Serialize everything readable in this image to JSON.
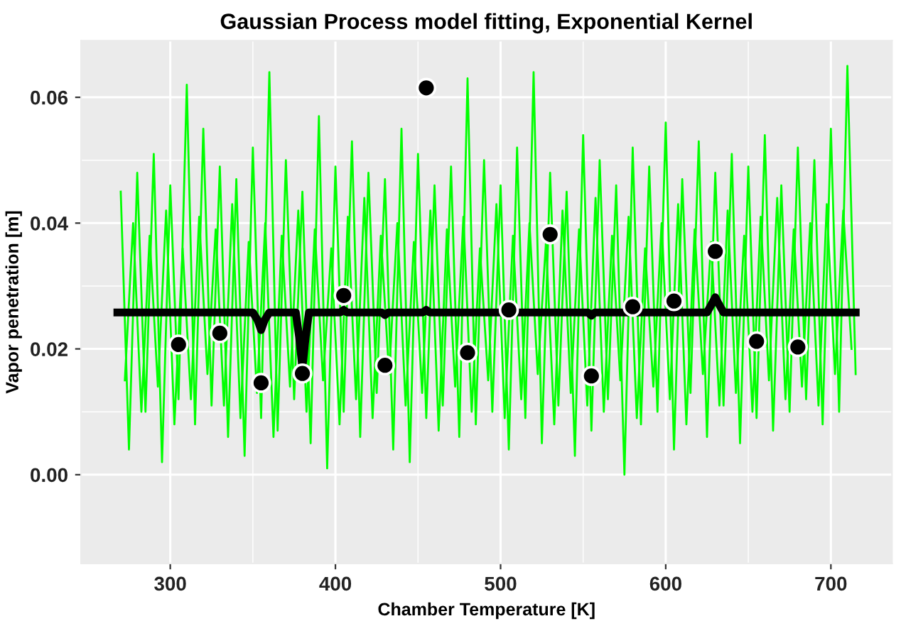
{
  "chart_data": {
    "type": "line",
    "title": "Gaussian Process model fitting, Exponential Kernel",
    "xlabel": "Chamber Temperature [K]",
    "ylabel": "Vapor penetration [m]",
    "xlim": [
      246,
      737
    ],
    "xticks": [
      300,
      400,
      500,
      600,
      700
    ],
    "ylim": [
      -0.0141,
      0.069
    ],
    "yticks": [
      {
        "value": 0,
        "label": "0.00"
      },
      {
        "value": 0.02,
        "label": "0.02"
      },
      {
        "value": 0.04,
        "label": "0.04"
      },
      {
        "value": 0.06,
        "label": "0.06"
      }
    ],
    "grid": true,
    "legend": false,
    "series": [
      {
        "color": "#00ff00",
        "x": [
          270,
          275,
          280,
          285,
          290,
          295,
          300,
          305,
          310,
          315,
          320,
          325,
          330,
          335,
          340,
          345,
          350,
          355,
          360,
          365,
          370,
          375,
          380,
          385,
          390,
          395,
          400,
          405,
          410,
          415,
          420,
          425,
          430,
          435,
          440,
          445,
          450,
          455,
          460,
          465,
          470,
          475,
          480,
          485,
          490,
          495,
          500,
          505,
          510,
          515,
          520,
          525,
          530,
          535,
          540,
          545,
          550,
          555,
          560,
          565,
          570,
          575,
          580,
          585,
          590,
          595,
          600,
          605,
          610,
          615,
          620,
          625,
          630,
          635,
          640,
          645,
          650,
          655,
          660,
          665,
          670,
          675,
          680,
          685,
          690,
          695,
          700,
          705,
          710,
          715
        ],
        "values": [
          0.045,
          0.004,
          0.048,
          0.01,
          0.051,
          0.002,
          0.046,
          0.012,
          0.062,
          0.008,
          0.055,
          0.011,
          0.049,
          0.006,
          0.047,
          0.003,
          0.052,
          0.009,
          0.064,
          0.007,
          0.05,
          0.012,
          0.045,
          0.005,
          0.057,
          0.001,
          0.049,
          0.01,
          0.053,
          0.006,
          0.048,
          0.013,
          0.047,
          0.004,
          0.055,
          0.002,
          0.051,
          0.009,
          0.046,
          0.011,
          0.049,
          0.006,
          0.063,
          0.008,
          0.05,
          0.01,
          0.046,
          0.004,
          0.052,
          0.009,
          0.064,
          0.005,
          0.048,
          0.011,
          0.045,
          0.003,
          0.054,
          0.007,
          0.05,
          0.012,
          0.046,
          0.0,
          0.052,
          0.008,
          0.049,
          0.01,
          0.056,
          0.004,
          0.047,
          0.013,
          0.053,
          0.006,
          0.048,
          0.011,
          0.051,
          0.005,
          0.049,
          0.009,
          0.054,
          0.007,
          0.046,
          0.01,
          0.052,
          0.012,
          0.05,
          0.008,
          0.055,
          0.01,
          0.065,
          0.016
        ]
      },
      {
        "color": "#00ff00",
        "x": [
          272.5,
          277.5,
          282.5,
          287.5,
          292.5,
          297.5,
          302.5,
          307.5,
          312.5,
          317.5,
          322.5,
          327.5,
          332.5,
          337.5,
          342.5,
          347.5,
          352.5,
          357.5,
          362.5,
          367.5,
          372.5,
          377.5,
          382.5,
          387.5,
          392.5,
          397.5,
          402.5,
          407.5,
          412.5,
          417.5,
          422.5,
          427.5,
          432.5,
          437.5,
          442.5,
          447.5,
          452.5,
          457.5,
          462.5,
          467.5,
          472.5,
          477.5,
          482.5,
          487.5,
          492.5,
          497.5,
          502.5,
          507.5,
          512.5,
          517.5,
          522.5,
          527.5,
          532.5,
          537.5,
          542.5,
          547.5,
          552.5,
          557.5,
          562.5,
          567.5,
          572.5,
          577.5,
          582.5,
          587.5,
          592.5,
          597.5,
          602.5,
          607.5,
          612.5,
          617.5,
          622.5,
          627.5,
          632.5,
          637.5,
          642.5,
          647.5,
          652.5,
          657.5,
          662.5,
          667.5,
          672.5,
          677.5,
          682.5,
          687.5,
          692.5,
          697.5,
          702.5,
          707.5,
          712.5
        ],
        "values": [
          0.015,
          0.04,
          0.01,
          0.038,
          0.014,
          0.042,
          0.008,
          0.036,
          0.012,
          0.041,
          0.016,
          0.039,
          0.011,
          0.043,
          0.009,
          0.037,
          0.013,
          0.04,
          0.006,
          0.038,
          0.014,
          0.042,
          0.01,
          0.039,
          0.015,
          0.036,
          0.008,
          0.041,
          0.012,
          0.044,
          0.009,
          0.038,
          0.016,
          0.04,
          0.011,
          0.037,
          0.013,
          0.042,
          0.007,
          0.039,
          0.014,
          0.041,
          0.01,
          0.036,
          0.015,
          0.043,
          0.009,
          0.038,
          0.012,
          0.04,
          0.016,
          0.037,
          0.008,
          0.042,
          0.013,
          0.039,
          0.011,
          0.044,
          0.01,
          0.038,
          0.015,
          0.041,
          0.009,
          0.036,
          0.014,
          0.04,
          0.012,
          0.043,
          0.008,
          0.039,
          0.016,
          0.037,
          0.011,
          0.042,
          0.013,
          0.038,
          0.01,
          0.041,
          0.015,
          0.044,
          0.012,
          0.039,
          0.014,
          0.04,
          0.011,
          0.043,
          0.016,
          0.042,
          0.02
        ]
      },
      {
        "color": "#000000",
        "x": [
          268,
          350,
          353,
          355,
          357,
          360,
          376,
          378,
          380,
          382,
          384,
          403,
          405,
          407,
          428,
          430,
          432,
          453,
          455,
          457,
          553,
          555,
          557,
          625,
          628,
          630,
          632,
          635,
          715
        ],
        "values": [
          0.0258,
          0.0258,
          0.0245,
          0.023,
          0.0245,
          0.0258,
          0.0258,
          0.022,
          0.017,
          0.022,
          0.0258,
          0.0258,
          0.0262,
          0.0258,
          0.0258,
          0.0254,
          0.0258,
          0.0258,
          0.0262,
          0.0258,
          0.0258,
          0.0253,
          0.0258,
          0.0258,
          0.0272,
          0.0282,
          0.0272,
          0.0258,
          0.0258
        ]
      },
      {
        "type": "scatter",
        "color": "#000000",
        "x": [
          305,
          330,
          355,
          380,
          405,
          430,
          455,
          480,
          505,
          530,
          555,
          580,
          605,
          630,
          655,
          680
        ],
        "values": [
          0.0207,
          0.0225,
          0.0146,
          0.0161,
          0.0285,
          0.0174,
          0.0615,
          0.0194,
          0.0262,
          0.0382,
          0.0157,
          0.0267,
          0.0276,
          0.0355,
          0.0212,
          0.0203
        ]
      }
    ]
  }
}
